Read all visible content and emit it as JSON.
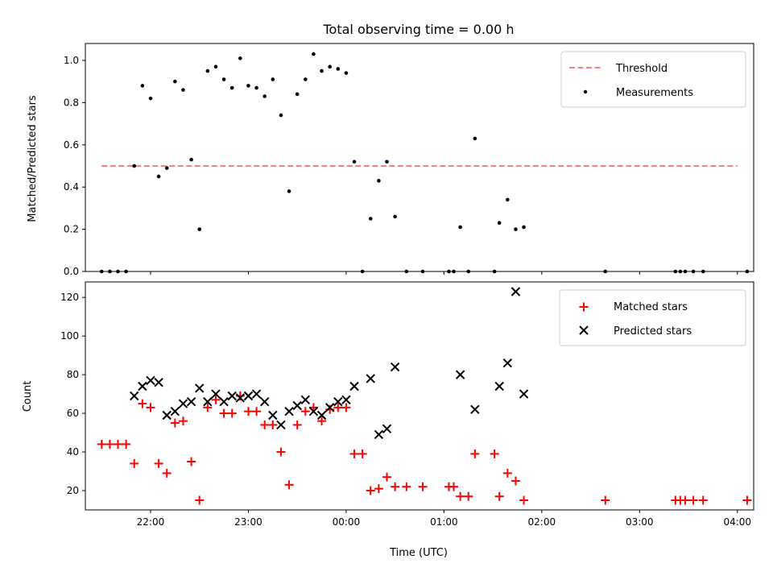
{
  "chart_data": [
    {
      "type": "scatter",
      "title": "Total observing time = 0.00 h",
      "ylabel": "Matched/Predicted stars",
      "xlim": [
        "21:20",
        "04:10"
      ],
      "ylim": [
        0,
        1.08
      ],
      "yticks": [
        0.0,
        0.2,
        0.4,
        0.6,
        0.8,
        1.0
      ],
      "ytick_labels": [
        "0.0",
        "0.2",
        "0.4",
        "0.6",
        "0.8",
        "1.0"
      ],
      "legend_position": "top-right",
      "threshold": {
        "name": "Threshold",
        "value": 0.5,
        "x_range": [
          "21:30",
          "04:00"
        ],
        "color": "#ff7f7f"
      },
      "series": [
        {
          "name": "Measurements",
          "color": "#000000",
          "points": [
            [
              "21:30",
              0.0
            ],
            [
              "21:35",
              0.0
            ],
            [
              "21:40",
              0.0
            ],
            [
              "21:45",
              0.0
            ],
            [
              "21:50",
              0.5
            ],
            [
              "21:55",
              0.88
            ],
            [
              "22:00",
              0.82
            ],
            [
              "22:05",
              0.45
            ],
            [
              "22:10",
              0.49
            ],
            [
              "22:15",
              0.9
            ],
            [
              "22:20",
              0.86
            ],
            [
              "22:25",
              0.53
            ],
            [
              "22:30",
              0.2
            ],
            [
              "22:35",
              0.95
            ],
            [
              "22:40",
              0.97
            ],
            [
              "22:45",
              0.91
            ],
            [
              "22:50",
              0.87
            ],
            [
              "22:55",
              1.01
            ],
            [
              "23:00",
              0.88
            ],
            [
              "23:05",
              0.87
            ],
            [
              "23:10",
              0.83
            ],
            [
              "23:15",
              0.91
            ],
            [
              "23:20",
              0.74
            ],
            [
              "23:25",
              0.38
            ],
            [
              "23:30",
              0.84
            ],
            [
              "23:35",
              0.91
            ],
            [
              "23:40",
              1.03
            ],
            [
              "23:45",
              0.95
            ],
            [
              "23:50",
              0.97
            ],
            [
              "23:55",
              0.96
            ],
            [
              "00:00",
              0.94
            ],
            [
              "00:05",
              0.52
            ],
            [
              "00:10",
              0.0
            ],
            [
              "00:15",
              0.25
            ],
            [
              "00:20",
              0.43
            ],
            [
              "00:25",
              0.52
            ],
            [
              "00:30",
              0.26
            ],
            [
              "00:37",
              0.0
            ],
            [
              "00:47",
              0.0
            ],
            [
              "01:03",
              0.0
            ],
            [
              "01:06",
              0.0
            ],
            [
              "01:10",
              0.21
            ],
            [
              "01:15",
              0.0
            ],
            [
              "01:19",
              0.63
            ],
            [
              "01:31",
              0.0
            ],
            [
              "01:34",
              0.23
            ],
            [
              "01:39",
              0.34
            ],
            [
              "01:44",
              0.2
            ],
            [
              "01:49",
              0.21
            ],
            [
              "02:39",
              0.0
            ],
            [
              "03:22",
              0.0
            ],
            [
              "03:25",
              0.0
            ],
            [
              "03:28",
              0.0
            ],
            [
              "03:33",
              0.0
            ],
            [
              "03:39",
              0.0
            ],
            [
              "04:06",
              0.0
            ]
          ]
        }
      ]
    },
    {
      "type": "scatter",
      "xlabel": "Time (UTC)",
      "ylabel": "Count",
      "xlim": [
        "21:20",
        "04:10"
      ],
      "ylim": [
        10,
        128
      ],
      "yticks": [
        20,
        40,
        60,
        80,
        100,
        120
      ],
      "ytick_labels": [
        "20",
        "40",
        "60",
        "80",
        "100",
        "120"
      ],
      "xticks": [
        "22:00",
        "23:00",
        "00:00",
        "01:00",
        "02:00",
        "03:00",
        "04:00"
      ],
      "xtick_labels": [
        "22:00",
        "23:00",
        "00:00",
        "01:00",
        "02:00",
        "03:00",
        "04:00"
      ],
      "legend_position": "top-right",
      "series": [
        {
          "name": "Matched stars",
          "marker": "plus",
          "color": "#ff0000",
          "points": [
            [
              "21:30",
              44
            ],
            [
              "21:35",
              44
            ],
            [
              "21:40",
              44
            ],
            [
              "21:45",
              44
            ],
            [
              "21:50",
              34
            ],
            [
              "21:55",
              65
            ],
            [
              "22:00",
              63
            ],
            [
              "22:05",
              34
            ],
            [
              "22:10",
              29
            ],
            [
              "22:15",
              55
            ],
            [
              "22:20",
              56
            ],
            [
              "22:25",
              35
            ],
            [
              "22:30",
              15
            ],
            [
              "22:35",
              63
            ],
            [
              "22:40",
              67
            ],
            [
              "22:45",
              60
            ],
            [
              "22:50",
              60
            ],
            [
              "22:55",
              69
            ],
            [
              "23:00",
              61
            ],
            [
              "23:05",
              61
            ],
            [
              "23:10",
              54
            ],
            [
              "23:15",
              54
            ],
            [
              "23:20",
              40
            ],
            [
              "23:25",
              23
            ],
            [
              "23:30",
              54
            ],
            [
              "23:35",
              61
            ],
            [
              "23:40",
              63
            ],
            [
              "23:45",
              56
            ],
            [
              "23:50",
              62
            ],
            [
              "23:55",
              63
            ],
            [
              "00:00",
              63
            ],
            [
              "00:05",
              39
            ],
            [
              "00:10",
              39
            ],
            [
              "00:15",
              20
            ],
            [
              "00:20",
              21
            ],
            [
              "00:25",
              27
            ],
            [
              "00:30",
              22
            ],
            [
              "00:37",
              22
            ],
            [
              "00:47",
              22
            ],
            [
              "01:03",
              22
            ],
            [
              "01:06",
              22
            ],
            [
              "01:10",
              17
            ],
            [
              "01:15",
              17
            ],
            [
              "01:19",
              39
            ],
            [
              "01:31",
              39
            ],
            [
              "01:34",
              17
            ],
            [
              "01:39",
              29
            ],
            [
              "01:44",
              25
            ],
            [
              "01:49",
              15
            ],
            [
              "02:39",
              15
            ],
            [
              "03:22",
              15
            ],
            [
              "03:25",
              15
            ],
            [
              "03:28",
              15
            ],
            [
              "03:33",
              15
            ],
            [
              "03:39",
              15
            ],
            [
              "04:06",
              15
            ]
          ]
        },
        {
          "name": "Predicted stars",
          "marker": "x",
          "color": "#000000",
          "points": [
            [
              "21:50",
              69
            ],
            [
              "21:55",
              74
            ],
            [
              "22:00",
              77
            ],
            [
              "22:05",
              76
            ],
            [
              "22:10",
              59
            ],
            [
              "22:15",
              61
            ],
            [
              "22:20",
              65
            ],
            [
              "22:25",
              66
            ],
            [
              "22:30",
              73
            ],
            [
              "22:35",
              66
            ],
            [
              "22:40",
              70
            ],
            [
              "22:45",
              66
            ],
            [
              "22:50",
              69
            ],
            [
              "22:55",
              68
            ],
            [
              "23:00",
              69
            ],
            [
              "23:05",
              70
            ],
            [
              "23:10",
              66
            ],
            [
              "23:15",
              59
            ],
            [
              "23:20",
              54
            ],
            [
              "23:25",
              61
            ],
            [
              "23:30",
              64
            ],
            [
              "23:35",
              67
            ],
            [
              "23:40",
              61
            ],
            [
              "23:45",
              59
            ],
            [
              "23:50",
              63
            ],
            [
              "23:55",
              66
            ],
            [
              "00:00",
              67
            ],
            [
              "00:05",
              74
            ],
            [
              "00:15",
              78
            ],
            [
              "00:20",
              49
            ],
            [
              "00:25",
              52
            ],
            [
              "00:30",
              84
            ],
            [
              "01:10",
              80
            ],
            [
              "01:19",
              62
            ],
            [
              "01:34",
              74
            ],
            [
              "01:39",
              86
            ],
            [
              "01:44",
              123
            ],
            [
              "01:49",
              70
            ]
          ]
        }
      ]
    }
  ]
}
